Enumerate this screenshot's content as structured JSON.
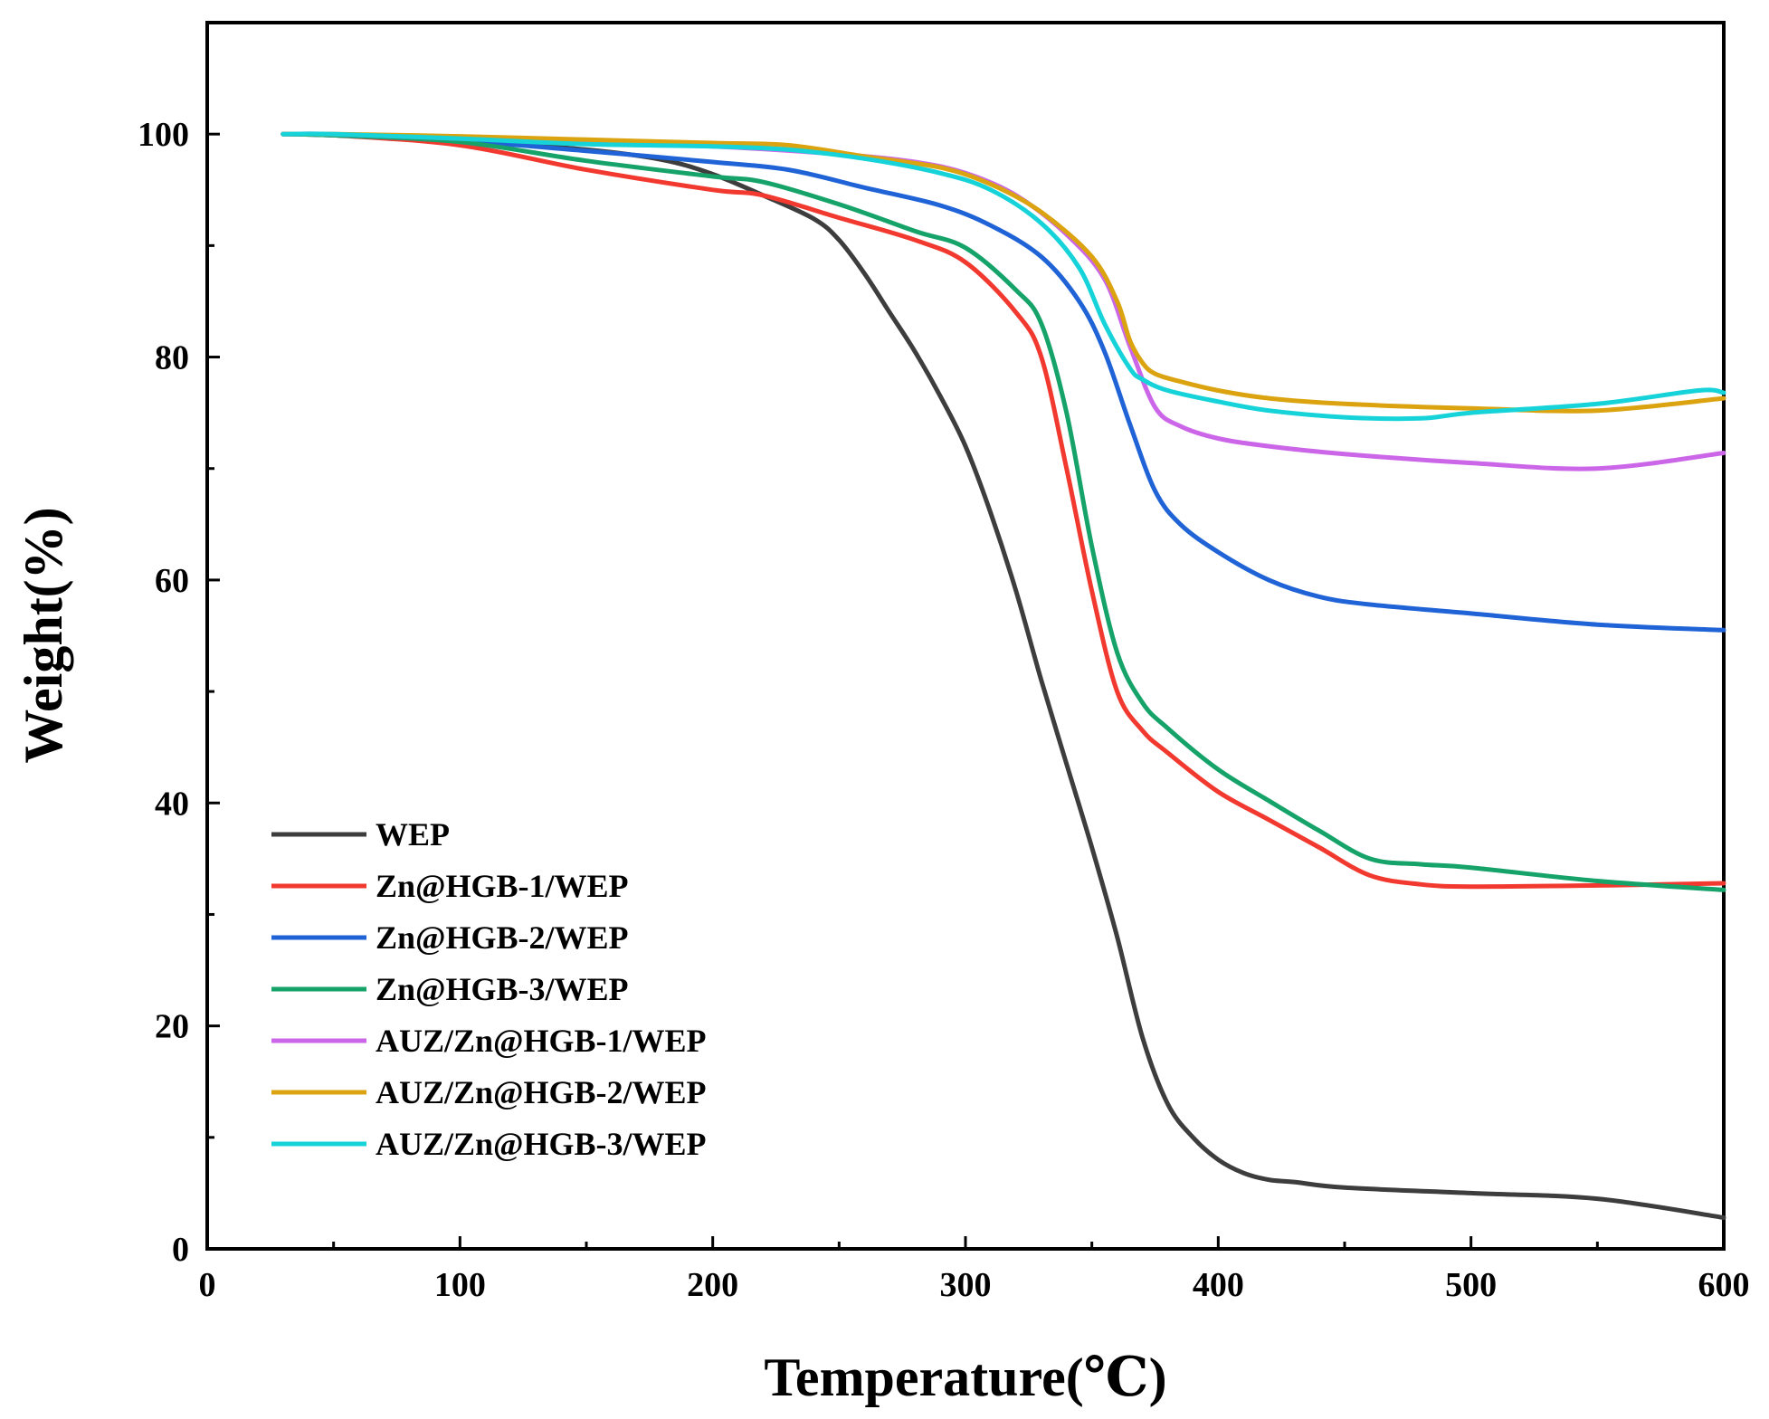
{
  "chart_data": {
    "type": "line",
    "title": "",
    "xlabel": "Temperature(℃)",
    "ylabel": "Weight(%)",
    "xlim": [
      0,
      600
    ],
    "ylim": [
      0,
      110
    ],
    "xticks": [
      0,
      100,
      200,
      300,
      400,
      500,
      600
    ],
    "yticks": [
      0,
      20,
      40,
      60,
      80,
      100
    ],
    "xtick_labels": [
      "0",
      "100",
      "200",
      "300",
      "400",
      "500",
      "600"
    ],
    "ytick_labels": [
      "0",
      "20",
      "40",
      "60",
      "80",
      "100"
    ],
    "grid": false,
    "legend_position": "bottom-left",
    "series": [
      {
        "name": "WEP",
        "color": "#3d3d3d",
        "x": [
          30,
          50,
          100,
          150,
          180,
          200,
          220,
          240,
          250,
          260,
          270,
          280,
          290,
          300,
          310,
          320,
          330,
          340,
          350,
          360,
          370,
          380,
          390,
          400,
          410,
          420,
          430,
          450,
          500,
          550,
          600
        ],
        "y": [
          100,
          99.9,
          99.4,
          98.6,
          97.7,
          96.4,
          94.5,
          92.4,
          90.5,
          87.5,
          84,
          80.5,
          76.5,
          72,
          66,
          59,
          51,
          43.5,
          36,
          28,
          19,
          13,
          10,
          8,
          6.8,
          6.2,
          6,
          5.5,
          5,
          4.5,
          2.8
        ]
      },
      {
        "name": "Zn@HGB-1/WEP",
        "color": "#f2392f",
        "x": [
          30,
          50,
          100,
          150,
          200,
          220,
          250,
          280,
          300,
          320,
          330,
          340,
          350,
          360,
          370,
          380,
          400,
          420,
          440,
          460,
          480,
          500,
          550,
          600
        ],
        "y": [
          100,
          99.9,
          99,
          96.8,
          95,
          94.5,
          92.5,
          90.5,
          88.5,
          84,
          80,
          70,
          59,
          50,
          46.5,
          44.5,
          41,
          38.5,
          36,
          33.5,
          32.7,
          32.5,
          32.6,
          32.8
        ]
      },
      {
        "name": "Zn@HGB-2/WEP",
        "color": "#1f63d6",
        "x": [
          30,
          50,
          100,
          150,
          200,
          230,
          260,
          290,
          310,
          330,
          345,
          355,
          365,
          375,
          385,
          400,
          420,
          440,
          460,
          500,
          550,
          600
        ],
        "y": [
          100,
          99.9,
          99.4,
          98.5,
          97.5,
          96.8,
          95.2,
          93.6,
          91.8,
          89,
          85,
          80.5,
          74,
          68,
          65,
          62.5,
          60,
          58.5,
          57.8,
          57,
          56,
          55.5
        ]
      },
      {
        "name": "Zn@HGB-3/WEP",
        "color": "#16a36a",
        "x": [
          30,
          50,
          100,
          150,
          200,
          220,
          250,
          280,
          300,
          320,
          330,
          340,
          350,
          360,
          370,
          380,
          400,
          420,
          440,
          460,
          480,
          500,
          550,
          600
        ],
        "y": [
          100,
          99.9,
          99.3,
          97.6,
          96.2,
          95.7,
          93.7,
          91.3,
          89.8,
          86,
          83,
          75,
          63,
          53.5,
          49,
          46.7,
          43,
          40.2,
          37.5,
          35,
          34.5,
          34.2,
          33,
          32.2
        ]
      },
      {
        "name": "AUZ/Zn@HGB-1/WEP",
        "color": "#cc66e8",
        "x": [
          30,
          50,
          100,
          150,
          200,
          250,
          280,
          300,
          320,
          340,
          355,
          365,
          375,
          385,
          400,
          420,
          450,
          500,
          550,
          600
        ],
        "y": [
          100,
          100,
          99.6,
          99.2,
          98.9,
          98.2,
          97.5,
          96.5,
          94.5,
          91,
          87,
          81,
          75.5,
          73.8,
          72.7,
          72,
          71.3,
          70.5,
          70,
          71.4
        ]
      },
      {
        "name": "AUZ/Zn@HGB-2/WEP",
        "color": "#dba30f",
        "x": [
          30,
          50,
          100,
          150,
          200,
          230,
          260,
          290,
          310,
          330,
          350,
          360,
          365,
          370,
          375,
          385,
          400,
          420,
          450,
          500,
          550,
          600
        ],
        "y": [
          100,
          100,
          99.8,
          99.5,
          99.2,
          99,
          98,
          97,
          95.5,
          93,
          89,
          85,
          81.5,
          79.5,
          78.5,
          77.8,
          77,
          76.3,
          75.8,
          75.4,
          75.2,
          76.3
        ]
      },
      {
        "name": "AUZ/Zn@HGB-3/WEP",
        "color": "#15d3d8",
        "x": [
          30,
          50,
          100,
          150,
          200,
          230,
          260,
          290,
          310,
          330,
          345,
          355,
          365,
          370,
          380,
          400,
          420,
          450,
          480,
          500,
          550,
          590,
          600
        ],
        "y": [
          100,
          100,
          99.6,
          99.1,
          98.9,
          98.6,
          97.8,
          96.5,
          95,
          92,
          88,
          83,
          79,
          78,
          77,
          76,
          75.2,
          74.6,
          74.5,
          75,
          75.8,
          77,
          76.8
        ]
      }
    ]
  }
}
